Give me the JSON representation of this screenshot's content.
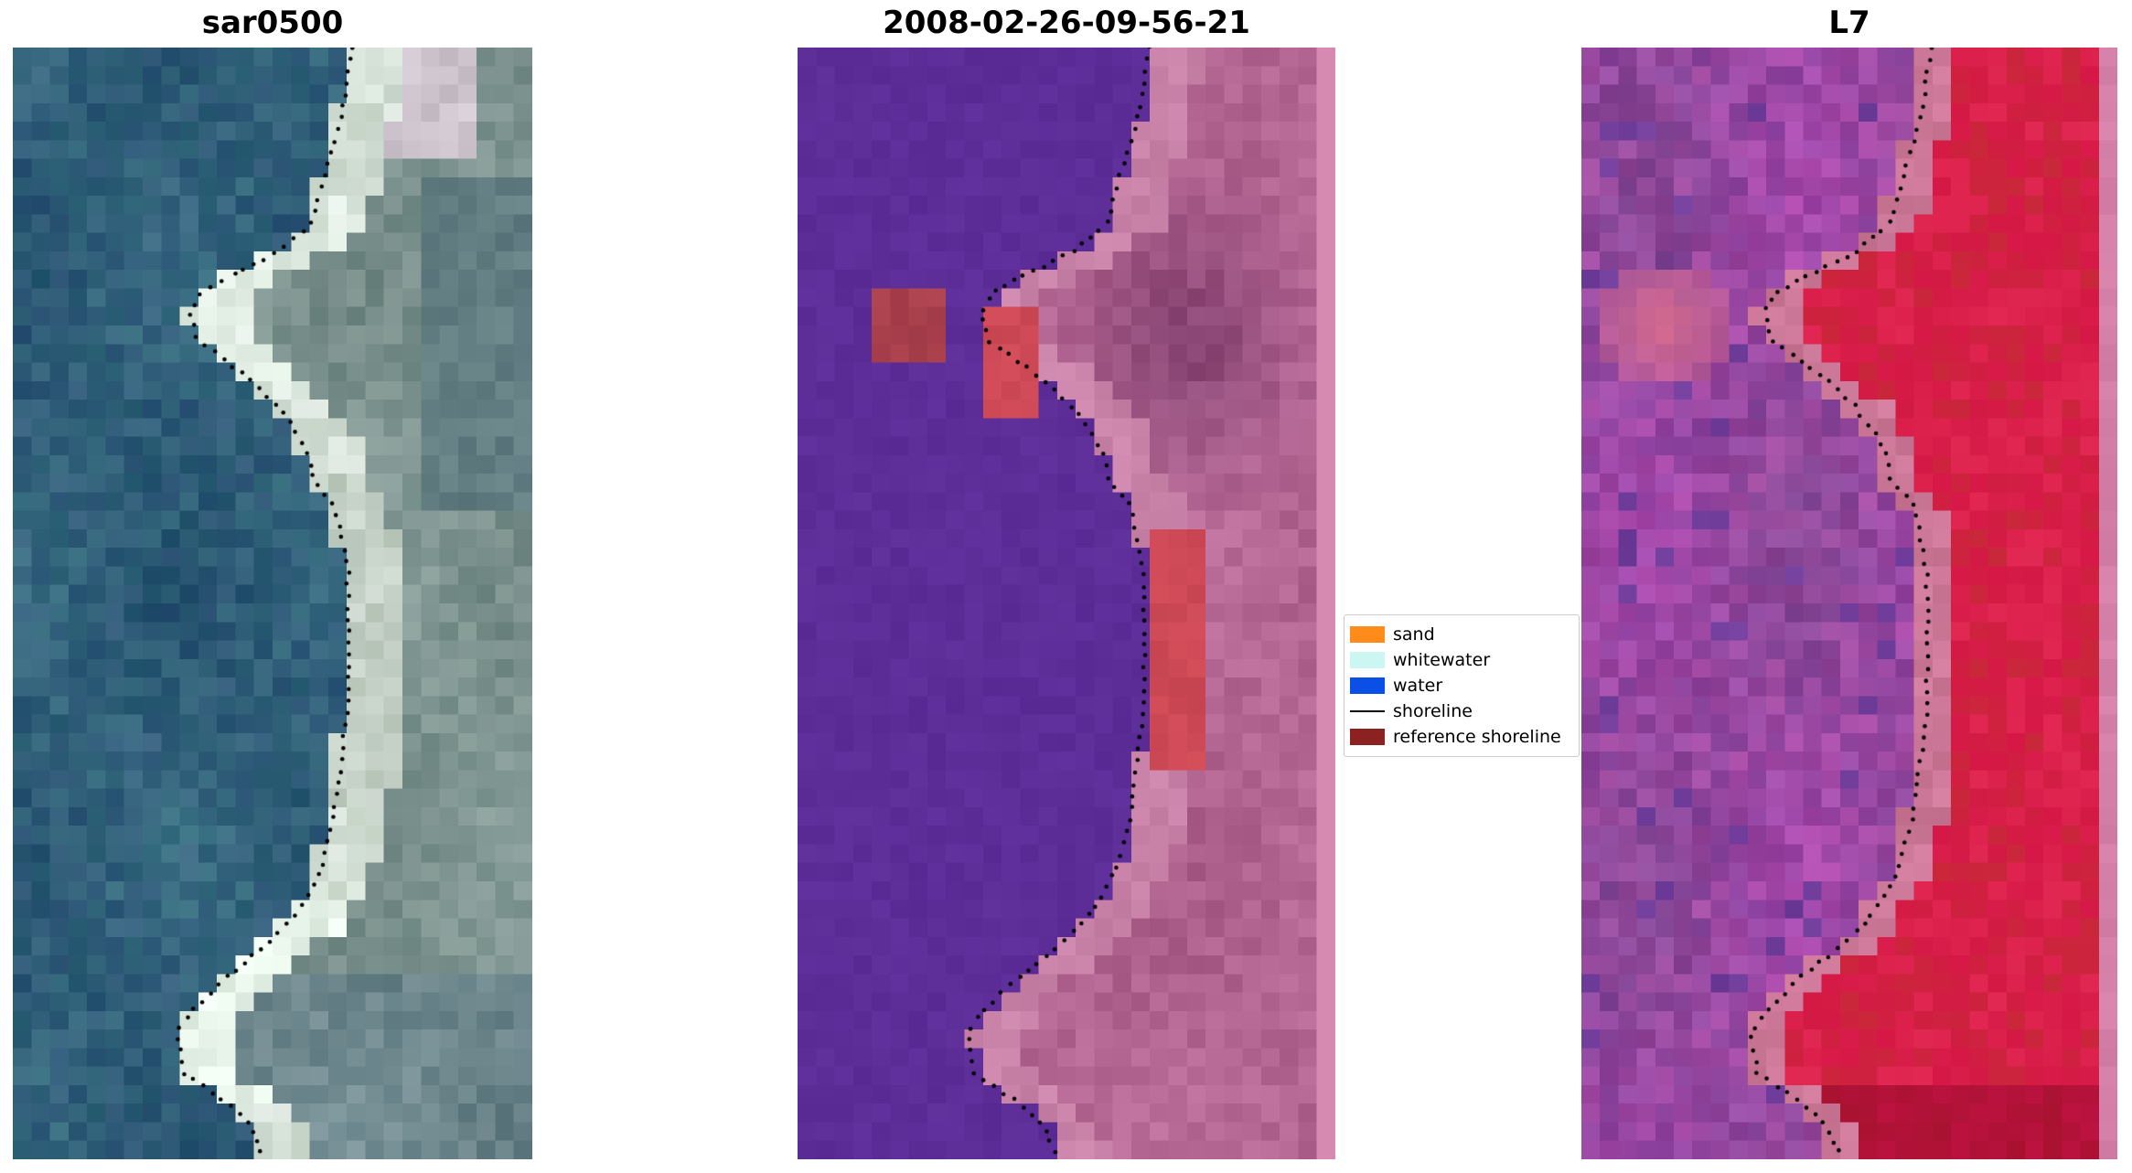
{
  "figure": {
    "background": "#ffffff"
  },
  "chart_data": {
    "type": "image-panels",
    "description": "Shoreline mapping figure: three co-registered coastal image panels (SAR composite, classified optical scene, Landsat 7 false-colour) with the detected shoreline overlaid as a black dotted line and a classification legend.",
    "panels": [
      {
        "title": "sar0500",
        "style": "sar",
        "palette": {
          "water": [
            48,
            95,
            121
          ],
          "beach": [
            212,
            224,
            214
          ],
          "upland": [
            126,
            148,
            144
          ],
          "upland_light": [
            206,
            196,
            206
          ],
          "upland_dark": [
            98,
            126,
            130
          ]
        }
      },
      {
        "title": "2008-02-26-09-56-21",
        "style": "classified",
        "palette": {
          "water": [
            93,
            45,
            152
          ],
          "beach": [
            201,
            131,
            169
          ],
          "land": [
            180,
            102,
            147
          ],
          "land_dark": [
            138,
            72,
            119
          ],
          "red_patch": [
            206,
            74,
            86
          ],
          "dark_red_patch": [
            168,
            64,
            76
          ],
          "edge_stripe": [
            214,
            138,
            178
          ]
        }
      },
      {
        "title": "L7",
        "style": "l7",
        "palette": {
          "water": [
            151,
            72,
            161
          ],
          "water_dark": [
            113,
            62,
            155
          ],
          "beach": [
            203,
            119,
            151
          ],
          "land": [
            213,
            24,
            70
          ],
          "land_dark": [
            178,
            18,
            56
          ],
          "pink_blob": [
            214,
            108,
            142
          ],
          "edge_stripe": [
            213,
            128,
            168
          ]
        }
      }
    ],
    "legend": {
      "background": "#ffffff",
      "border_color": "#cccccc",
      "items": [
        {
          "label": "sand",
          "type": "patch",
          "color": "#ff8c1a"
        },
        {
          "label": "whitewater",
          "type": "patch",
          "color": "#ccf6f2"
        },
        {
          "label": "water",
          "type": "patch",
          "color": "#0b50e6"
        },
        {
          "label": "shoreline",
          "type": "line",
          "color": "#000000"
        },
        {
          "label": "reference shoreline",
          "type": "patch",
          "color": "#8b2121"
        }
      ]
    },
    "shoreline": {
      "color": "#000000",
      "marker": "dotted",
      "points": [
        [
          0.653,
          0.0
        ],
        [
          0.632,
          0.067
        ],
        [
          0.592,
          0.128
        ],
        [
          0.574,
          0.159
        ],
        [
          0.513,
          0.183
        ],
        [
          0.434,
          0.202
        ],
        [
          0.363,
          0.22
        ],
        [
          0.342,
          0.238
        ],
        [
          0.355,
          0.263
        ],
        [
          0.408,
          0.281
        ],
        [
          0.461,
          0.3
        ],
        [
          0.513,
          0.324
        ],
        [
          0.566,
          0.361
        ],
        [
          0.579,
          0.391
        ],
        [
          0.618,
          0.41
        ],
        [
          0.632,
          0.44
        ],
        [
          0.645,
          0.471
        ],
        [
          0.645,
          0.593
        ],
        [
          0.632,
          0.642
        ],
        [
          0.618,
          0.691
        ],
        [
          0.592,
          0.74
        ],
        [
          0.566,
          0.764
        ],
        [
          0.526,
          0.789
        ],
        [
          0.474,
          0.813
        ],
        [
          0.408,
          0.837
        ],
        [
          0.342,
          0.868
        ],
        [
          0.316,
          0.886
        ],
        [
          0.329,
          0.923
        ],
        [
          0.368,
          0.935
        ],
        [
          0.421,
          0.953
        ],
        [
          0.461,
          0.972
        ],
        [
          0.474,
          0.99
        ],
        [
          0.487,
          1.0
        ]
      ]
    }
  }
}
